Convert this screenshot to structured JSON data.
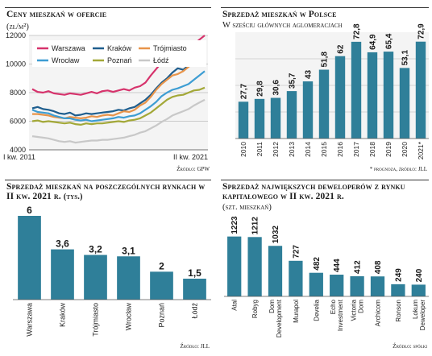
{
  "panels": {
    "prices": {
      "title": "Ceny mieszkań w ofercie",
      "subtitle": "(zł/m²)",
      "source": "Źródło: GPW"
    },
    "sales_pl": {
      "title": "Sprzedaż mieszkań w Polsce",
      "subtitle": "W sześciu głównych aglomeracjach",
      "source": "* prognoza, źródło: JLL"
    },
    "sales_markets": {
      "title": "Sprzedaż mieszkań na poszczególnych rynkach w II kw. 2021 r.",
      "subtitle": "(tys.)",
      "source": "Źródło: JLL"
    },
    "developers": {
      "title": "Sprzedaż największych deweloperów z rynku kapitałowego w II kw. 2021 r.",
      "subtitle": "(szt. mieszkań)",
      "source": "Źródło: spółki"
    }
  },
  "chart_data": [
    {
      "type": "line",
      "ylim": [
        4000,
        12000
      ],
      "yticks": [
        4000,
        6000,
        8000,
        10000,
        12000
      ],
      "ytick_labels": [
        "4000",
        "6000",
        "8000",
        "10000",
        "12000"
      ],
      "x_start_label": "I kw. 2011",
      "x_end_label": "II kw. 2021",
      "grid": true,
      "legend": "top-left",
      "series": [
        {
          "name": "Warszawa",
          "color": "#d6336c",
          "values": [
            8250,
            8050,
            8000,
            8100,
            7950,
            7900,
            7850,
            7950,
            7900,
            7850,
            7950,
            8050,
            7950,
            8100,
            8150,
            8050,
            8150,
            8250,
            8150,
            8350,
            8450,
            8700,
            9200,
            9650,
            10100,
            10350,
            10650,
            10600,
            10900,
            11300,
            11400,
            11700,
            12000
          ]
        },
        {
          "name": "Kraków",
          "color": "#1f5e8e",
          "values": [
            6900,
            7000,
            6850,
            6800,
            6700,
            6550,
            6500,
            6600,
            6400,
            6450,
            6550,
            6500,
            6550,
            6600,
            6650,
            6700,
            6800,
            6750,
            6900,
            7000,
            7250,
            7500,
            7850,
            8300,
            8700,
            9000,
            9400,
            9700,
            9600,
            9900,
            10200,
            10400,
            10700
          ]
        },
        {
          "name": "Trójmiasto",
          "color": "#e8944a",
          "values": [
            6500,
            6500,
            6450,
            6400,
            6300,
            6250,
            6200,
            6300,
            6250,
            6200,
            6250,
            6350,
            6300,
            6400,
            6450,
            6400,
            6550,
            6700,
            6650,
            6800,
            7100,
            7300,
            7700,
            8200,
            8600,
            8900,
            9200,
            9300,
            9500,
            9800,
            10100,
            10300,
            10600
          ]
        },
        {
          "name": "Wrocław",
          "color": "#3d9dd3",
          "values": [
            6800,
            6650,
            6600,
            6550,
            6400,
            6300,
            6200,
            6200,
            6100,
            6050,
            6100,
            6000,
            6050,
            6100,
            6150,
            6200,
            6300,
            6250,
            6350,
            6400,
            6550,
            6800,
            7050,
            7350,
            7750,
            8000,
            8200,
            8300,
            8450,
            8600,
            8900,
            9200,
            9500
          ]
        },
        {
          "name": "Poznań",
          "color": "#a3a838",
          "values": [
            6000,
            6050,
            5950,
            6000,
            5950,
            5900,
            5850,
            5900,
            5800,
            5750,
            5850,
            5800,
            5850,
            5850,
            5900,
            5950,
            6000,
            5950,
            6050,
            6100,
            6200,
            6400,
            6600,
            6900,
            7200,
            7500,
            7700,
            7800,
            7850,
            8000,
            8150,
            8200,
            8350
          ]
        },
        {
          "name": "Łódź",
          "color": "#c8c8c8",
          "values": [
            4950,
            4900,
            4850,
            4800,
            4700,
            4600,
            4550,
            4600,
            4500,
            4550,
            4600,
            4650,
            4650,
            4700,
            4700,
            4750,
            4800,
            4850,
            4950,
            5050,
            5200,
            5300,
            5500,
            5700,
            5950,
            6150,
            6400,
            6550,
            6700,
            6850,
            7100,
            7300,
            7500
          ]
        }
      ]
    },
    {
      "type": "bar",
      "categories": [
        "2010",
        "2011",
        "2012",
        "2013",
        "2014",
        "2015",
        "2016",
        "2017",
        "2018",
        "2019",
        "2020",
        "2021*"
      ],
      "values": [
        27.7,
        29.8,
        30.6,
        35.7,
        43,
        51.8,
        62,
        72.8,
        64.9,
        65.4,
        53.1,
        72.9
      ],
      "value_labels": [
        "27,7",
        "29,8",
        "30,6",
        "35,7",
        "43",
        "51,8",
        "62",
        "72,8",
        "64,9",
        "65,4",
        "53,1",
        "72,9"
      ],
      "ylim": [
        0,
        80
      ],
      "grid": true,
      "color": "#2f7f99"
    },
    {
      "type": "bar",
      "categories": [
        "Warszawa",
        "Kraków",
        "Trójmiasto",
        "Wrocław",
        "Poznań",
        "Łódź"
      ],
      "values": [
        6,
        3.6,
        3.2,
        3.1,
        2,
        1.5
      ],
      "value_labels": [
        "6",
        "3,6",
        "3,2",
        "3,1",
        "2",
        "1,5"
      ],
      "ylim": [
        0,
        6
      ],
      "color": "#2f7f99"
    },
    {
      "type": "bar",
      "categories": [
        "Atal",
        "Robyg",
        "Dom Development",
        "Murapol",
        "Develia",
        "Echo Investment",
        "Victoria Dom",
        "Archicom",
        "Ronson",
        "Lokum Deweloper"
      ],
      "values": [
        1223,
        1212,
        1032,
        727,
        482,
        444,
        412,
        408,
        249,
        240
      ],
      "value_labels": [
        "1223",
        "1212",
        "1032",
        "727",
        "482",
        "444",
        "412",
        "408",
        "249",
        "240"
      ],
      "ylim": [
        0,
        1250
      ],
      "color": "#2f7f99"
    }
  ]
}
